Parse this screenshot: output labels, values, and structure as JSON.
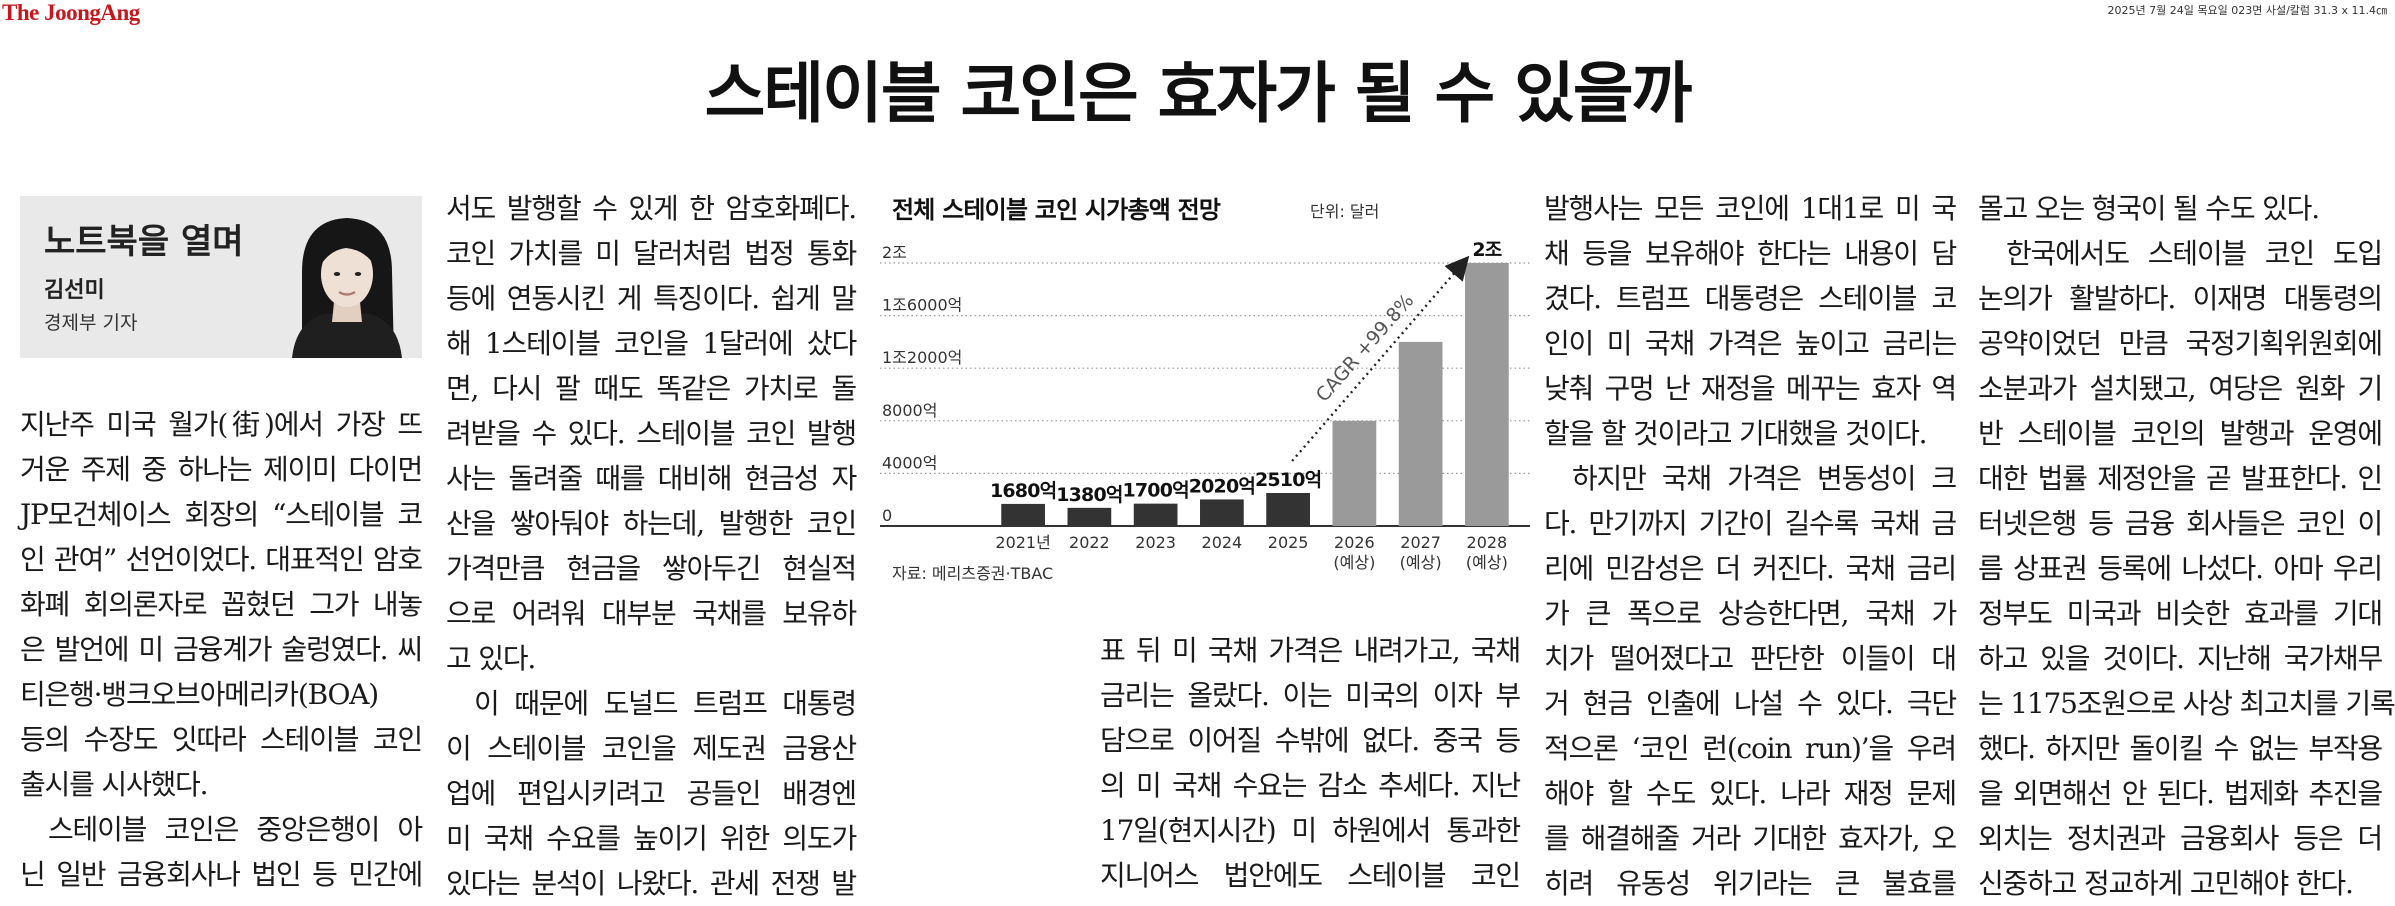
{
  "masthead": "The JoongAng",
  "dateline": "2025년 7월 24일 목요일 023면 사설/칼럼 31.3 x 11.4㎝",
  "headline": "스테이블 코인은 효자가 될 수 있을까",
  "byline": {
    "column_name": "노트북을 열며",
    "author": "김선미",
    "author_title": "경제부 기자"
  },
  "columns": [
    [
      "지난주 미국 월가(街)에서 가장 뜨",
      "거운 주제 중 하나는 제이미 다이먼",
      "JP모건체이스 회장의 “스테이블 코",
      "인 관여” 선언이었다. 대표적인 암호",
      "화폐 회의론자로 꼽혔던 그가 내놓",
      "은 발언에 미 금융계가 술렁였다. 씨",
      "티은행·뱅크오브아메리카(BOA)",
      "등의 수장도 잇따라 스테이블 코인",
      "출시를 시사했다.",
      "스테이블 코인은 중앙은행이 아",
      "닌 일반 금융회사나 법인 등 민간에"
    ],
    [
      "서도 발행할 수 있게 한 암호화폐다.",
      "코인 가치를 미 달러처럼 법정 통화",
      "등에 연동시킨 게 특징이다. 쉽게 말",
      "해 1스테이블 코인을 1달러에 샀다",
      "면, 다시 팔 때도 똑같은 가치로 돌",
      "려받을 수 있다. 스테이블 코인 발행",
      "사는 돌려줄 때를 대비해 현금성 자",
      "산을 쌓아둬야 하는데, 발행한 코인",
      "가격만큼 현금을 쌓아두긴 현실적",
      "으로 어려워 대부분 국채를 보유하",
      "고 있다.",
      "이 때문에 도널드 트럼프 대통령",
      "이 스테이블 코인을 제도권 금융산",
      "업에 편입시키려고 공들인 배경엔",
      "미 국채 수요를 높이기 위한 의도가",
      "있다는 분석이 나왔다. 관세 전쟁 발"
    ],
    [
      "표 뒤 미 국채 가격은 내려가고, 국채",
      "금리는 올랐다. 이는 미국의 이자 부",
      "담으로 이어질 수밖에 없다. 중국 등",
      "의 미 국채 수요는 감소 추세다. 지난",
      "17일(현지시간) 미 하원에서 통과한",
      "지니어스 법안에도 스테이블 코인"
    ],
    [
      "발행사는 모든 코인에 1대1로 미 국",
      "채 등을 보유해야 한다는 내용이 담",
      "겼다. 트럼프 대통령은 스테이블 코",
      "인이 미 국채 가격은 높이고 금리는",
      "낮춰 구멍 난 재정을 메꾸는 효자 역",
      "할을 할 것이라고 기대했을 것이다.",
      "하지만 국채 가격은 변동성이 크",
      "다. 만기까지 기간이 길수록 국채 금",
      "리에 민감성은 더 커진다. 국채 금리",
      "가 큰 폭으로 상승한다면, 국채 가",
      "치가 떨어졌다고 판단한 이들이 대",
      "거 현금 인출에 나설 수 있다. 극단",
      "적으론 ‘코인 런(coin run)’을 우려",
      "해야 할 수도 있다. 나라 재정 문제",
      "를 해결해줄 거라 기대한 효자가, 오",
      "히려 유동성 위기라는 큰 불효를"
    ],
    [
      "몰고 오는 형국이 될 수도 있다.",
      "한국에서도 스테이블 코인 도입",
      "논의가 활발하다. 이재명 대통령의",
      "공약이었던 만큼 국정기획위원회에",
      "소분과가 설치됐고, 여당은 원화 기",
      "반 스테이블 코인의 발행과 운영에",
      "대한 법률 제정안을 곧 발표한다. 인",
      "터넷은행 등 금융 회사들은 코인 이",
      "름 상표권 등록에 나섰다. 아마 우리",
      "정부도 미국과 비슷한 효과를 기대",
      "하고 있을 것이다. 지난해 국가채무",
      "는 1175조원으로 사상 최고치를 기록",
      "했다. 하지만 돌이킬 수 없는 부작용",
      "을 외면해선 안 된다. 법제화 추진을",
      "외치는 정치권과 금융회사 등은 더",
      "신중하고 정교하게 고민해야 한다."
    ]
  ],
  "chart_data": {
    "type": "bar",
    "title": "전체 스테이블 코인 시가총액 전망",
    "unit": "단위: 달러",
    "source": "자료: 메리츠증권·TBAC",
    "categories": [
      "2021년",
      "2022",
      "2023",
      "2024",
      "2025",
      "2026",
      "2027",
      "2028"
    ],
    "category_sub": [
      "",
      "",
      "",
      "",
      "",
      "(예상)",
      "(예상)",
      "(예상)"
    ],
    "values": [
      1680,
      1380,
      1700,
      2020,
      2510,
      8000,
      14000,
      20000
    ],
    "value_unit": "억 달러",
    "data_labels": [
      "1680억",
      "1380억",
      "1700억",
      "2020억",
      "2510억",
      "",
      "",
      "2조"
    ],
    "projected": [
      false,
      false,
      false,
      false,
      false,
      true,
      true,
      true
    ],
    "ylim": [
      0,
      20000
    ],
    "yticks": [
      0,
      4000,
      8000,
      12000,
      16000,
      20000
    ],
    "ytick_labels": [
      "0",
      "4000억",
      "8000억",
      "1조2000억",
      "1조6000억",
      "2조"
    ],
    "grid": true,
    "annotation": "CAGR +99.8%",
    "colors": {
      "actual": "#333333",
      "projected": "#9a9a9a"
    }
  }
}
